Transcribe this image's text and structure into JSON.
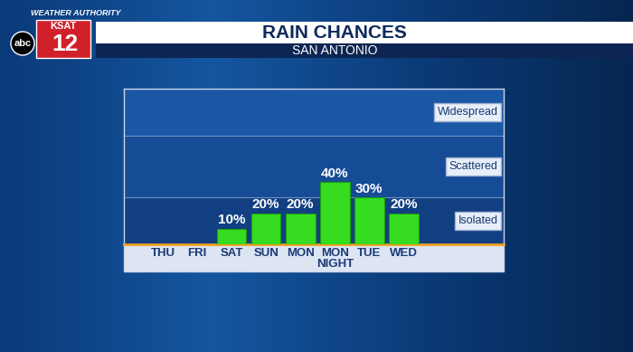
{
  "branding": {
    "segment": "WEATHER AUTHORITY",
    "station": "KSAT",
    "channel": "12",
    "network": "abc"
  },
  "chart_data": {
    "type": "bar",
    "title": "RAIN CHANCES",
    "subtitle": "SAN ANTONIO",
    "categories": [
      "THU",
      "FRI",
      "SAT",
      "SUN",
      "MON",
      "MON NIGHT",
      "TUE",
      "WED"
    ],
    "values": [
      null,
      null,
      10,
      20,
      20,
      40,
      30,
      20
    ],
    "value_labels": [
      null,
      null,
      "10%",
      "20%",
      "20%",
      "40%",
      "30%",
      "20%"
    ],
    "data_labels": true,
    "color": "#35dc1f",
    "ylim": [
      0,
      100
    ],
    "tick_labels": "x",
    "bands": [
      {
        "label": "Isolated",
        "from": 0,
        "to": 30
      },
      {
        "label": "Scattered",
        "from": 30,
        "to": 70
      },
      {
        "label": "Widespread",
        "from": 70,
        "to": 100
      }
    ]
  }
}
